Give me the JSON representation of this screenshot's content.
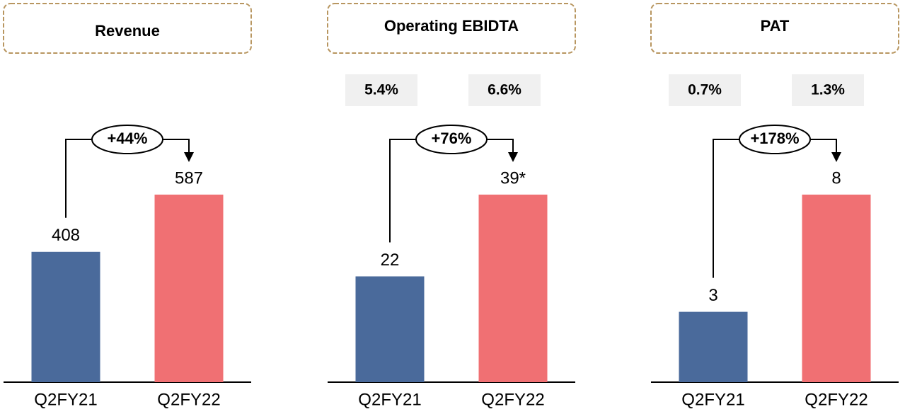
{
  "chart_data": [
    {
      "type": "bar",
      "title": "Revenue",
      "categories": [
        "Q2FY21",
        "Q2FY22"
      ],
      "values": [
        408,
        587
      ],
      "colors": [
        "#4a6a9b",
        "#f07073"
      ],
      "annotation": "+44%"
    },
    {
      "type": "bar",
      "title": "Operating EBIDTA",
      "categories": [
        "Q2FY21",
        "Q2FY22"
      ],
      "values": [
        22,
        39
      ],
      "value_labels": [
        "22",
        "39*"
      ],
      "colors": [
        "#4a6a9b",
        "#f07073"
      ],
      "annotation": "+76%",
      "margins": [
        "5.4%",
        "6.6%"
      ]
    },
    {
      "type": "bar",
      "title": "PAT",
      "categories": [
        "Q2FY21",
        "Q2FY22"
      ],
      "values": [
        3,
        8
      ],
      "colors": [
        "#4a6a9b",
        "#f07073"
      ],
      "annotation": "+178%",
      "margins": [
        "0.7%",
        "1.3%"
      ]
    }
  ]
}
